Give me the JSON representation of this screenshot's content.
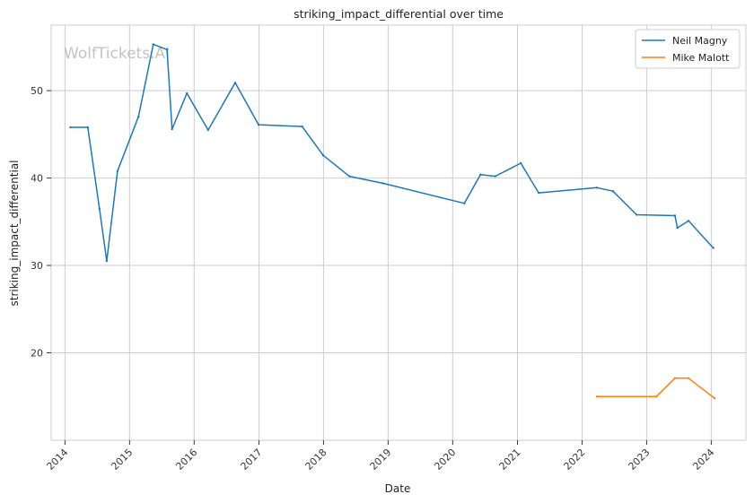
{
  "chart_data": {
    "type": "line",
    "title": "striking_impact_differential over time",
    "xlabel": "Date",
    "ylabel": "striking_impact_differential",
    "watermark": "WolfTickets.AI",
    "x_ticks": [
      "2014",
      "2015",
      "2016",
      "2017",
      "2018",
      "2019",
      "2020",
      "2021",
      "2022",
      "2023",
      "2024"
    ],
    "y_ticks": [
      20,
      30,
      40,
      50
    ],
    "xlim": [
      "2013-10-15",
      "2024-07-15"
    ],
    "ylim": [
      10,
      57.5
    ],
    "grid": true,
    "legend_position": "top-right",
    "colors": {
      "Neil Magny": "#1f77b4",
      "Mike Malott": "#ff7f0e"
    },
    "series": [
      {
        "name": "Neil Magny",
        "points": [
          [
            "2014-02-01",
            45.8
          ],
          [
            "2014-05-10",
            45.8
          ],
          [
            "2014-07-15",
            36.5
          ],
          [
            "2014-08-25",
            30.5
          ],
          [
            "2014-10-25",
            40.8
          ],
          [
            "2015-02-20",
            47.0
          ],
          [
            "2015-05-15",
            55.3
          ],
          [
            "2015-08-01",
            54.7
          ],
          [
            "2015-08-29",
            45.6
          ],
          [
            "2015-11-21",
            49.7
          ],
          [
            "2016-03-20",
            45.5
          ],
          [
            "2016-08-20",
            50.9
          ],
          [
            "2016-12-30",
            46.1
          ],
          [
            "2017-09-02",
            45.9
          ],
          [
            "2017-12-30",
            42.6
          ],
          [
            "2018-05-27",
            40.2
          ],
          [
            "2018-12-02",
            39.4
          ],
          [
            "2020-03-07",
            37.1
          ],
          [
            "2020-06-06",
            40.4
          ],
          [
            "2020-08-29",
            40.2
          ],
          [
            "2021-01-20",
            41.7
          ],
          [
            "2021-05-01",
            38.3
          ],
          [
            "2022-03-26",
            38.9
          ],
          [
            "2022-06-25",
            38.5
          ],
          [
            "2022-11-05",
            35.8
          ],
          [
            "2023-06-10",
            35.7
          ],
          [
            "2023-06-24",
            34.3
          ],
          [
            "2023-08-26",
            35.1
          ],
          [
            "2024-01-13",
            32.0
          ]
        ]
      },
      {
        "name": "Mike Malott",
        "points": [
          [
            "2022-03-26",
            15.0
          ],
          [
            "2023-02-25",
            15.0
          ],
          [
            "2023-06-10",
            17.1
          ],
          [
            "2023-08-26",
            17.1
          ],
          [
            "2024-01-20",
            14.8
          ]
        ]
      }
    ]
  }
}
